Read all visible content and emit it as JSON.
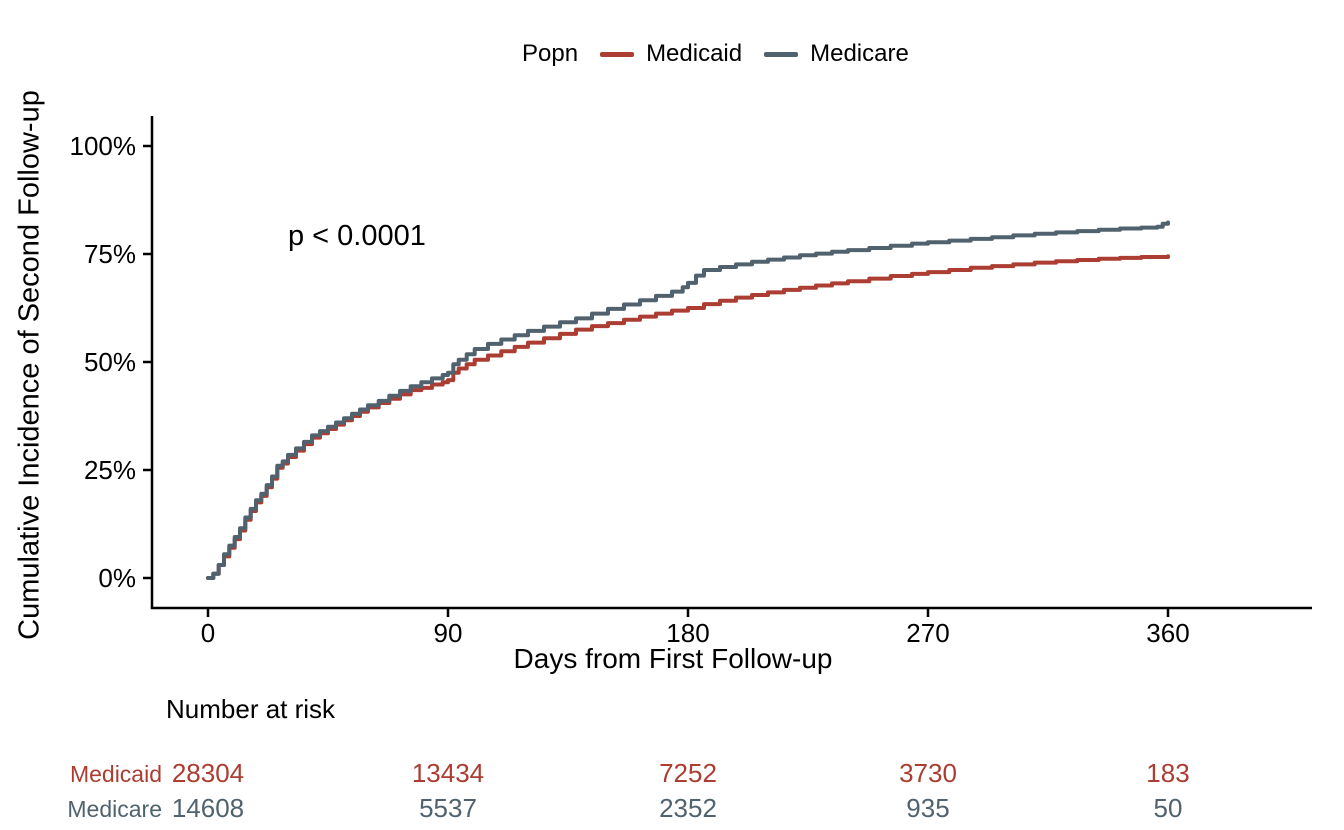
{
  "legend": {
    "title": "Popn",
    "items": [
      {
        "label": "Medicaid",
        "color": "#ab3d32"
      },
      {
        "label": "Medicare",
        "color": "#51626f"
      }
    ]
  },
  "annotation": {
    "text": "p < 0.0001"
  },
  "axes": {
    "x_title": "Days from First Follow-up",
    "y_title": "Cumulative Incidence of Second Follow-up"
  },
  "chart_data": {
    "type": "line",
    "subtype": "step-cumulative-incidence",
    "title": "",
    "xlabel": "Days from First Follow-up",
    "ylabel": "Cumulative Incidence of Second Follow-up",
    "xlim": [
      0,
      395
    ],
    "ylim": [
      0,
      100
    ],
    "grid": false,
    "legend_position": "top",
    "x_ticks": [
      0,
      90,
      180,
      270,
      360
    ],
    "y_tick_values": [
      0,
      25,
      50,
      75,
      100
    ],
    "y_tick_labels": [
      "0%",
      "25%",
      "50%",
      "75%",
      "100%"
    ],
    "annotation": "p < 0.0001",
    "series": [
      {
        "name": "Medicaid",
        "color": "#ab3d32",
        "points": [
          [
            0,
            0
          ],
          [
            2,
            1
          ],
          [
            4,
            3
          ],
          [
            6,
            5
          ],
          [
            8,
            7
          ],
          [
            10,
            9
          ],
          [
            12,
            11
          ],
          [
            14,
            13.5
          ],
          [
            16,
            15.5
          ],
          [
            18,
            17.5
          ],
          [
            20,
            19
          ],
          [
            22,
            21
          ],
          [
            24,
            23
          ],
          [
            26,
            25.5
          ],
          [
            28,
            26.5
          ],
          [
            30,
            28
          ],
          [
            33,
            29.5
          ],
          [
            36,
            31
          ],
          [
            39,
            32.5
          ],
          [
            42,
            33.5
          ],
          [
            45,
            34.5
          ],
          [
            48,
            35.5
          ],
          [
            51,
            36.5
          ],
          [
            54,
            37.5
          ],
          [
            57,
            38.5
          ],
          [
            60,
            39.5
          ],
          [
            64,
            40.5
          ],
          [
            68,
            41.5
          ],
          [
            72,
            42.5
          ],
          [
            76,
            43.5
          ],
          [
            80,
            44
          ],
          [
            84,
            44.8
          ],
          [
            88,
            45.3
          ],
          [
            90,
            45.8
          ],
          [
            92,
            47.5
          ],
          [
            94,
            48.5
          ],
          [
            97,
            49.5
          ],
          [
            100,
            50.5
          ],
          [
            105,
            51.5
          ],
          [
            110,
            52.5
          ],
          [
            115,
            53.5
          ],
          [
            120,
            54.5
          ],
          [
            126,
            55.5
          ],
          [
            132,
            56.5
          ],
          [
            138,
            57.5
          ],
          [
            144,
            58.3
          ],
          [
            150,
            59
          ],
          [
            156,
            59.8
          ],
          [
            162,
            60.5
          ],
          [
            168,
            61.2
          ],
          [
            174,
            61.9
          ],
          [
            180,
            62.5
          ],
          [
            186,
            63.4
          ],
          [
            192,
            64.2
          ],
          [
            198,
            64.9
          ],
          [
            204,
            65.5
          ],
          [
            210,
            66.1
          ],
          [
            216,
            66.7
          ],
          [
            222,
            67.2
          ],
          [
            228,
            67.7
          ],
          [
            234,
            68.2
          ],
          [
            240,
            68.7
          ],
          [
            248,
            69.3
          ],
          [
            256,
            69.9
          ],
          [
            264,
            70.4
          ],
          [
            270,
            70.8
          ],
          [
            278,
            71.3
          ],
          [
            286,
            71.8
          ],
          [
            294,
            72.2
          ],
          [
            302,
            72.6
          ],
          [
            310,
            73
          ],
          [
            318,
            73.3
          ],
          [
            326,
            73.6
          ],
          [
            334,
            73.9
          ],
          [
            342,
            74.1
          ],
          [
            350,
            74.3
          ],
          [
            360,
            74.5
          ]
        ]
      },
      {
        "name": "Medicare",
        "color": "#51626f",
        "points": [
          [
            0,
            0
          ],
          [
            2,
            1
          ],
          [
            4,
            3
          ],
          [
            6,
            5.5
          ],
          [
            8,
            7.5
          ],
          [
            10,
            9.5
          ],
          [
            12,
            11.5
          ],
          [
            14,
            14
          ],
          [
            16,
            16
          ],
          [
            18,
            18
          ],
          [
            20,
            19.5
          ],
          [
            22,
            21.5
          ],
          [
            24,
            23.5
          ],
          [
            26,
            26
          ],
          [
            28,
            27
          ],
          [
            30,
            28.5
          ],
          [
            33,
            30
          ],
          [
            36,
            31.5
          ],
          [
            39,
            33
          ],
          [
            42,
            34
          ],
          [
            45,
            35
          ],
          [
            48,
            36
          ],
          [
            51,
            37
          ],
          [
            54,
            38
          ],
          [
            57,
            39
          ],
          [
            60,
            40
          ],
          [
            64,
            41
          ],
          [
            68,
            42.2
          ],
          [
            72,
            43.3
          ],
          [
            76,
            44.4
          ],
          [
            80,
            45.3
          ],
          [
            84,
            46.2
          ],
          [
            88,
            47
          ],
          [
            90,
            47.5
          ],
          [
            92,
            49.5
          ],
          [
            94,
            50.5
          ],
          [
            97,
            51.8
          ],
          [
            100,
            53
          ],
          [
            105,
            54.2
          ],
          [
            110,
            55.2
          ],
          [
            115,
            56.2
          ],
          [
            120,
            57.2
          ],
          [
            126,
            58.2
          ],
          [
            132,
            59.2
          ],
          [
            138,
            60.1
          ],
          [
            144,
            61.2
          ],
          [
            150,
            62.3
          ],
          [
            156,
            63.3
          ],
          [
            162,
            64.3
          ],
          [
            168,
            65.3
          ],
          [
            174,
            66.3
          ],
          [
            178,
            67.3
          ],
          [
            180,
            68.3
          ],
          [
            183,
            70
          ],
          [
            186,
            71.3
          ],
          [
            192,
            72
          ],
          [
            198,
            72.6
          ],
          [
            204,
            73.2
          ],
          [
            210,
            73.7
          ],
          [
            216,
            74.2
          ],
          [
            222,
            74.7
          ],
          [
            228,
            75.1
          ],
          [
            234,
            75.5
          ],
          [
            240,
            75.9
          ],
          [
            248,
            76.4
          ],
          [
            256,
            76.9
          ],
          [
            264,
            77.4
          ],
          [
            270,
            77.7
          ],
          [
            278,
            78.1
          ],
          [
            286,
            78.5
          ],
          [
            294,
            78.9
          ],
          [
            302,
            79.3
          ],
          [
            310,
            79.7
          ],
          [
            318,
            80
          ],
          [
            326,
            80.3
          ],
          [
            334,
            80.6
          ],
          [
            342,
            80.9
          ],
          [
            350,
            81.1
          ],
          [
            356,
            81.3
          ],
          [
            358,
            82
          ],
          [
            360,
            82.3
          ]
        ]
      }
    ],
    "risk_table": {
      "title": "Number at risk",
      "times": [
        0,
        90,
        180,
        270,
        360
      ],
      "rows": [
        {
          "label": "Medicaid",
          "color": "#ab3d32",
          "values": [
            28304,
            13434,
            7252,
            3730,
            183
          ]
        },
        {
          "label": "Medicare",
          "color": "#51626f",
          "values": [
            14608,
            5537,
            2352,
            935,
            50
          ]
        }
      ]
    }
  }
}
